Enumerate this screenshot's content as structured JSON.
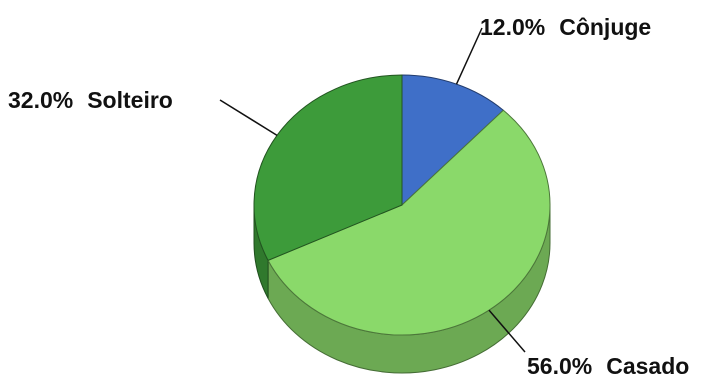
{
  "chart_data": {
    "type": "pie",
    "style": "3d",
    "slices": [
      {
        "label": "Cônjuge",
        "value": 12.0,
        "pct_label": "12.0%",
        "color": "#3f6fc8"
      },
      {
        "label": "Casado",
        "value": 56.0,
        "pct_label": "56.0%",
        "color": "#8ad96a"
      },
      {
        "label": "Solteiro",
        "value": 32.0,
        "pct_label": "32.0%",
        "color": "#3d9b3a"
      }
    ]
  }
}
